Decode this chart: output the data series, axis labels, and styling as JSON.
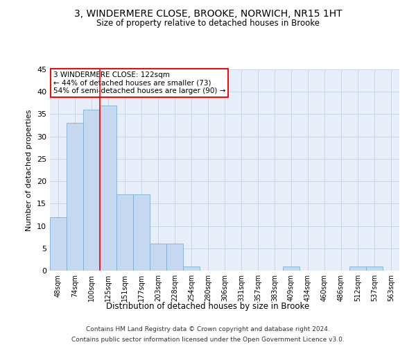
{
  "title": "3, WINDERMERE CLOSE, BROOKE, NORWICH, NR15 1HT",
  "subtitle": "Size of property relative to detached houses in Brooke",
  "xlabel": "Distribution of detached houses by size in Brooke",
  "ylabel": "Number of detached properties",
  "bar_labels": [
    "48sqm",
    "74sqm",
    "100sqm",
    "125sqm",
    "151sqm",
    "177sqm",
    "203sqm",
    "228sqm",
    "254sqm",
    "280sqm",
    "306sqm",
    "331sqm",
    "357sqm",
    "383sqm",
    "409sqm",
    "434sqm",
    "460sqm",
    "486sqm",
    "512sqm",
    "537sqm",
    "563sqm"
  ],
  "bar_values": [
    12,
    33,
    36,
    37,
    17,
    17,
    6,
    6,
    1,
    0,
    0,
    0,
    0,
    0,
    1,
    0,
    0,
    0,
    1,
    1,
    0
  ],
  "bar_color": "#c5d8f0",
  "bar_edgecolor": "#7ab0d4",
  "grid_color": "#c8d4e8",
  "background_color": "#e8eef8",
  "red_line_index": 3,
  "annotation_text": "3 WINDERMERE CLOSE: 122sqm\n← 44% of detached houses are smaller (73)\n54% of semi-detached houses are larger (90) →",
  "annotation_box_edgecolor": "red",
  "ylim": [
    0,
    45
  ],
  "yticks": [
    0,
    5,
    10,
    15,
    20,
    25,
    30,
    35,
    40,
    45
  ],
  "footer_line1": "Contains HM Land Registry data © Crown copyright and database right 2024.",
  "footer_line2": "Contains public sector information licensed under the Open Government Licence v3.0."
}
